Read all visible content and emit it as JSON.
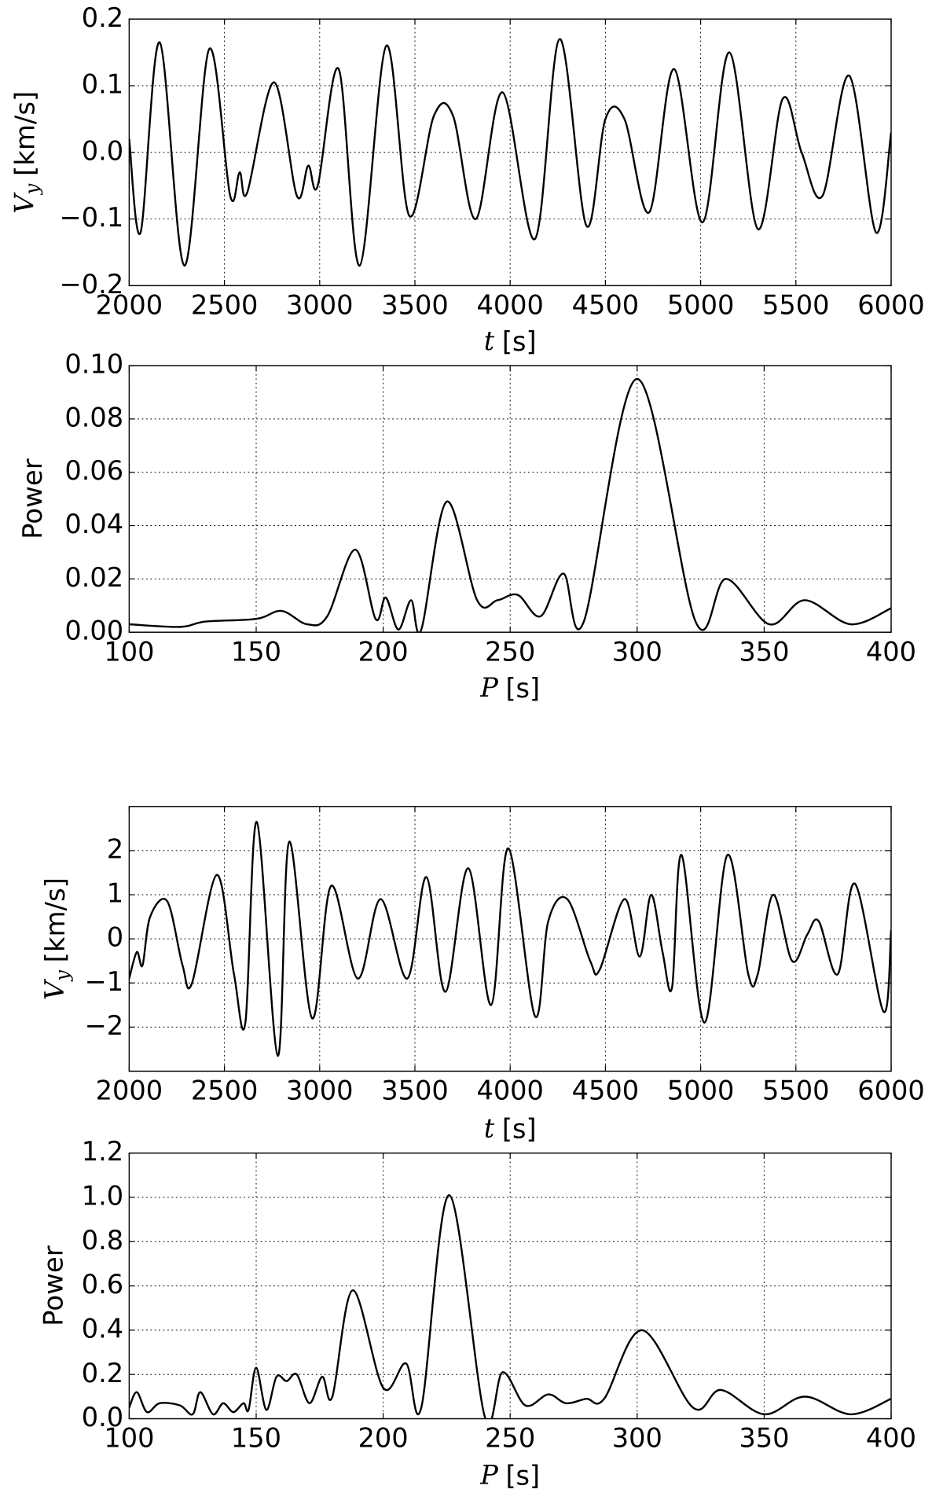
{
  "chart_data": [
    {
      "type": "line",
      "xlabel": {
        "symbol": "t",
        "unit": "[s]"
      },
      "ylabel": {
        "symbol": "V",
        "subscript": "y",
        "unit": "[km/s]"
      },
      "xlim": [
        2000,
        6000
      ],
      "xticks": [
        2000,
        2500,
        3000,
        3500,
        4000,
        4500,
        5000,
        5500,
        6000
      ],
      "ylim": [
        -0.2,
        0.2
      ],
      "yticks": [
        {
          "value": -0.2,
          "label": "−0.2"
        },
        {
          "value": -0.1,
          "label": "−0.1"
        },
        {
          "value": 0,
          "label": "0.0"
        },
        0.1,
        0.2
      ],
      "grid": true,
      "color": "#000000",
      "x": [
        2000,
        2060,
        2160,
        2290,
        2420,
        2530,
        2580,
        2620,
        2760,
        2880,
        2940,
        2990,
        3100,
        3210,
        3350,
        3470,
        3600,
        3700,
        3820,
        3960,
        4130,
        4260,
        4400,
        4500,
        4600,
        4730,
        4860,
        5010,
        5150,
        5300,
        5430,
        5530,
        5640,
        5780,
        5920,
        6000
      ],
      "values": [
        0.02,
        -0.12,
        0.165,
        -0.17,
        0.155,
        -0.065,
        -0.03,
        -0.06,
        0.105,
        -0.065,
        -0.02,
        -0.05,
        0.125,
        -0.17,
        0.16,
        -0.095,
        0.055,
        0.055,
        -0.1,
        0.09,
        -0.13,
        0.17,
        -0.11,
        0.05,
        0.05,
        -0.09,
        0.125,
        -0.105,
        0.15,
        -0.115,
        0.08,
        0.0,
        -0.065,
        0.115,
        -0.12,
        0.03
      ]
    },
    {
      "type": "line",
      "xlabel": {
        "symbol": "P",
        "unit": "[s]"
      },
      "ylabel": {
        "text": "Power"
      },
      "xlim": [
        100,
        400
      ],
      "xticks": [
        100,
        150,
        200,
        250,
        300,
        350,
        400
      ],
      "ylim": [
        0,
        0.1
      ],
      "yticks": [
        {
          "value": 0,
          "label": "0.00"
        },
        0.02,
        0.04,
        0.06,
        0.08,
        {
          "value": 0.1,
          "label": "0.10"
        }
      ],
      "grid": true,
      "color": "#000000",
      "x": [
        100,
        120,
        130,
        150,
        160,
        170,
        178,
        189,
        197,
        201,
        206,
        211,
        215,
        225,
        237,
        245,
        253,
        262,
        271,
        279,
        300,
        323,
        335,
        352,
        366,
        384,
        400
      ],
      "values": [
        0.003,
        0.002,
        0.004,
        0.005,
        0.008,
        0.003,
        0.006,
        0.031,
        0.005,
        0.013,
        0.001,
        0.012,
        0.001,
        0.049,
        0.012,
        0.012,
        0.014,
        0.006,
        0.022,
        0.004,
        0.095,
        0.004,
        0.02,
        0.003,
        0.012,
        0.003,
        0.009
      ]
    },
    {
      "type": "line",
      "xlabel": {
        "symbol": "t",
        "unit": "[s]"
      },
      "ylabel": {
        "symbol": "V",
        "subscript": "y",
        "unit": "[km/s]"
      },
      "xlim": [
        2000,
        6000
      ],
      "xticks": [
        2000,
        2500,
        3000,
        3500,
        4000,
        4500,
        5000,
        5500,
        6000
      ],
      "ylim": [
        -3,
        3
      ],
      "yticks": [
        {
          "value": -2,
          "label": "−2"
        },
        {
          "value": -1,
          "label": "−1"
        },
        0,
        1,
        2
      ],
      "grid": true,
      "color": "#000000",
      "x": [
        2000,
        2040,
        2070,
        2110,
        2200,
        2280,
        2330,
        2460,
        2550,
        2610,
        2670,
        2780,
        2840,
        2960,
        3060,
        3200,
        3320,
        3460,
        3560,
        3660,
        3780,
        3900,
        3990,
        4130,
        4200,
        4300,
        4420,
        4470,
        4600,
        4680,
        4740,
        4800,
        4850,
        4900,
        5020,
        5140,
        5250,
        5300,
        5380,
        5480,
        5560,
        5620,
        5720,
        5810,
        5960,
        6000
      ],
      "values": [
        -0.9,
        -0.3,
        -0.6,
        0.5,
        0.85,
        -0.6,
        -1.0,
        1.45,
        -0.8,
        -1.9,
        2.65,
        -2.65,
        2.2,
        -1.8,
        1.2,
        -0.9,
        0.9,
        -0.9,
        1.4,
        -1.2,
        1.6,
        -1.5,
        2.05,
        -1.75,
        0.4,
        0.9,
        -0.5,
        -0.7,
        0.9,
        -0.4,
        1.0,
        -0.3,
        -1.1,
        1.9,
        -1.9,
        1.9,
        -0.8,
        -0.8,
        1.0,
        -0.5,
        0.1,
        0.4,
        -0.8,
        1.25,
        -1.65,
        0.2
      ]
    },
    {
      "type": "line",
      "xlabel": {
        "symbol": "P",
        "unit": "[s]"
      },
      "ylabel": {
        "text": "Power"
      },
      "xlim": [
        100,
        400
      ],
      "xticks": [
        100,
        150,
        200,
        250,
        300,
        350,
        400
      ],
      "ylim": [
        0,
        1.2
      ],
      "yticks": [
        {
          "value": 0,
          "label": "0.0"
        },
        0.2,
        0.4,
        0.6,
        0.8,
        {
          "value": 1,
          "label": "1.0"
        },
        1.2
      ],
      "grid": true,
      "color": "#000000",
      "x": [
        100,
        103,
        107,
        112,
        120,
        125,
        128,
        133,
        137,
        141,
        145,
        147,
        150,
        154,
        158,
        162,
        166,
        171,
        176,
        180,
        188,
        200,
        209,
        215,
        226,
        240,
        247,
        256,
        265,
        272,
        280,
        287,
        302,
        322,
        333,
        350,
        366,
        384,
        400
      ],
      "values": [
        0.05,
        0.12,
        0.03,
        0.07,
        0.06,
        0.02,
        0.12,
        0.02,
        0.07,
        0.03,
        0.07,
        0.04,
        0.23,
        0.04,
        0.19,
        0.17,
        0.2,
        0.07,
        0.19,
        0.1,
        0.58,
        0.14,
        0.25,
        0.05,
        1.01,
        0.01,
        0.21,
        0.06,
        0.11,
        0.07,
        0.09,
        0.09,
        0.4,
        0.05,
        0.13,
        0.02,
        0.1,
        0.02,
        0.09
      ]
    }
  ]
}
